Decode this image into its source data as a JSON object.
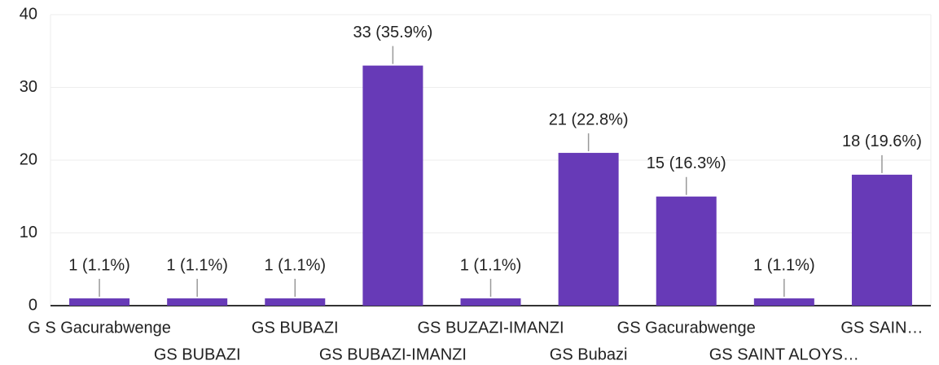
{
  "chart_data": {
    "type": "bar",
    "categories": [
      "G S Gacurabwenge",
      "GS BUBAZI",
      "GS BUBAZI",
      "GS BUBAZI-IMANZI",
      "GS BUZAZI-IMANZI",
      "GS Bubazi",
      "GS Gacurabwenge",
      "GS SAINT ALOYS…",
      "GS SAIN…"
    ],
    "values": [
      1,
      1,
      1,
      33,
      1,
      21,
      15,
      1,
      18
    ],
    "value_labels": [
      "1 (1.1%)",
      "1 (1.1%)",
      "1 (1.1%)",
      "33 (35.9%)",
      "1 (1.1%)",
      "21 (22.8%)",
      "15 (16.3%)",
      "1 (1.1%)",
      "18 (19.6%)"
    ],
    "color": "#673ab7",
    "ylim": [
      0,
      40
    ],
    "yticks": [
      0,
      10,
      20,
      30,
      40
    ],
    "grid": true
  }
}
